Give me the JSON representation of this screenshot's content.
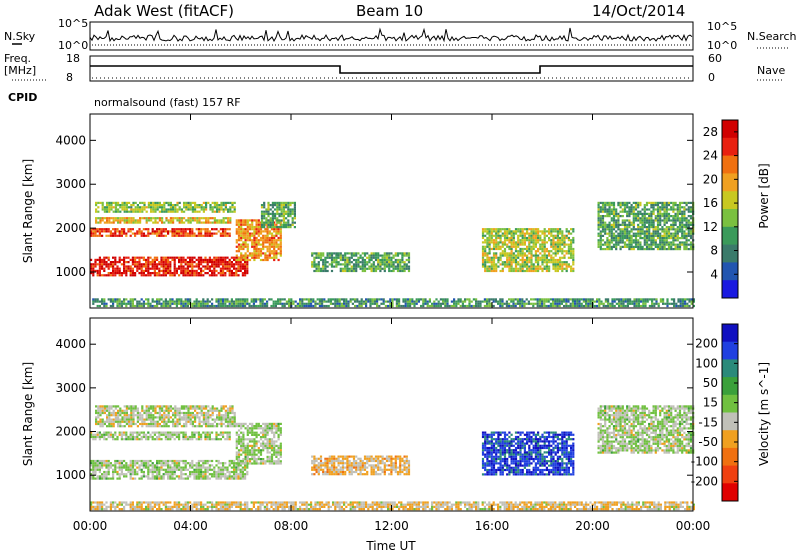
{
  "header": {
    "station": "Adak West (fitACF)",
    "beam": "Beam 10",
    "date": "14/Oct/2014"
  },
  "mini_panels": {
    "nsky_label": "N.Sky",
    "nsearch_label": "N.Search",
    "nsky_ticks": [
      "10^5",
      "10^0"
    ],
    "nsearch_ticks": [
      "10^5",
      "10^0"
    ],
    "freq_label_1": "Freq.",
    "freq_label_2": "[MHz]",
    "freq_ticks": [
      "18",
      "8"
    ],
    "nave_label": "Nave",
    "nave_ticks": [
      "60",
      "0"
    ],
    "cpid_label": "CPID",
    "cpid_value": "normalsound (fast) 157 RF"
  },
  "chart_data": [
    {
      "type": "heatmap",
      "title": "",
      "xlabel": "",
      "ylabel": "Slant Range [km]",
      "x_ticks": [
        "00:00",
        "04:00",
        "08:00",
        "12:00",
        "16:00",
        "20:00",
        "00:00"
      ],
      "xlim": [
        0,
        24
      ],
      "y_ticks": [
        "1000",
        "2000",
        "3000",
        "4000"
      ],
      "ylim": [
        180,
        4600
      ],
      "colorbar": {
        "label": "Power [dB]",
        "ticks": [
          "4",
          "8",
          "12",
          "16",
          "20",
          "24",
          "28"
        ],
        "range": [
          0,
          30
        ],
        "colors": [
          "#1a1ae0",
          "#2255b0",
          "#3a7a6a",
          "#3a9a5a",
          "#7ac040",
          "#c8c820",
          "#f0a020",
          "#f07010",
          "#e82010",
          "#d00000"
        ]
      },
      "features": [
        {
          "start": 0.0,
          "end": 6.3,
          "range_lo": 900,
          "range_hi": 1350,
          "level": 0.95
        },
        {
          "start": 0.0,
          "end": 5.6,
          "range_lo": 1800,
          "range_hi": 2000,
          "level": 0.85
        },
        {
          "start": 0.2,
          "end": 5.6,
          "range_lo": 2100,
          "range_hi": 2250,
          "level": 0.6
        },
        {
          "start": 0.2,
          "end": 5.8,
          "range_lo": 2350,
          "range_hi": 2600,
          "level": 0.45
        },
        {
          "start": 5.8,
          "end": 7.6,
          "range_lo": 1250,
          "range_hi": 2200,
          "level": 0.7
        },
        {
          "start": 6.8,
          "end": 8.2,
          "range_lo": 2000,
          "range_hi": 2600,
          "level": 0.35
        },
        {
          "start": 8.8,
          "end": 12.7,
          "range_lo": 1000,
          "range_hi": 1450,
          "level": 0.35
        },
        {
          "start": 15.6,
          "end": 19.2,
          "range_lo": 1000,
          "range_hi": 2000,
          "level": 0.5
        },
        {
          "start": 20.2,
          "end": 24.0,
          "range_lo": 1500,
          "range_hi": 2600,
          "level": 0.35
        },
        {
          "start": 0.0,
          "end": 24.0,
          "range_lo": 220,
          "range_hi": 400,
          "level": 0.3
        }
      ]
    },
    {
      "type": "heatmap",
      "title": "",
      "xlabel": "Time UT",
      "ylabel": "Slant Range [km]",
      "x_ticks": [
        "00:00",
        "04:00",
        "08:00",
        "12:00",
        "16:00",
        "20:00",
        "00:00"
      ],
      "xlim": [
        0,
        24
      ],
      "y_ticks": [
        "1000",
        "2000",
        "3000",
        "4000"
      ],
      "ylim": [
        180,
        4600
      ],
      "colorbar": {
        "label": "Velocity [m s^-1]",
        "ticks": [
          "200",
          "100",
          "50",
          "15",
          "-15",
          "-50",
          "-100",
          "-200"
        ],
        "range": [
          -250,
          250
        ],
        "colors": [
          "#1010c0",
          "#2040e0",
          "#2a8a7a",
          "#3aa03a",
          "#70c040",
          "#c0c0b8",
          "#f0a020",
          "#f07010",
          "#f04010",
          "#e00000"
        ]
      },
      "features": [
        {
          "start": 0.0,
          "end": 6.3,
          "range_lo": 900,
          "range_hi": 1350,
          "velocity": 0
        },
        {
          "start": 0.0,
          "end": 5.6,
          "range_lo": 1800,
          "range_hi": 2000,
          "velocity": 0
        },
        {
          "start": 0.2,
          "end": 5.8,
          "range_lo": 2100,
          "range_hi": 2600,
          "velocity": -20
        },
        {
          "start": 5.8,
          "end": 7.6,
          "range_lo": 1250,
          "range_hi": 2200,
          "velocity": 0
        },
        {
          "start": 8.8,
          "end": 12.7,
          "range_lo": 1000,
          "range_hi": 1450,
          "velocity": -60
        },
        {
          "start": 15.6,
          "end": 19.2,
          "range_lo": 1000,
          "range_hi": 2000,
          "velocity": 200
        },
        {
          "start": 20.2,
          "end": 24.0,
          "range_lo": 1500,
          "range_hi": 2600,
          "velocity": 0
        },
        {
          "start": 0.0,
          "end": 24.0,
          "range_lo": 220,
          "range_hi": 400,
          "velocity": -50
        }
      ]
    }
  ]
}
